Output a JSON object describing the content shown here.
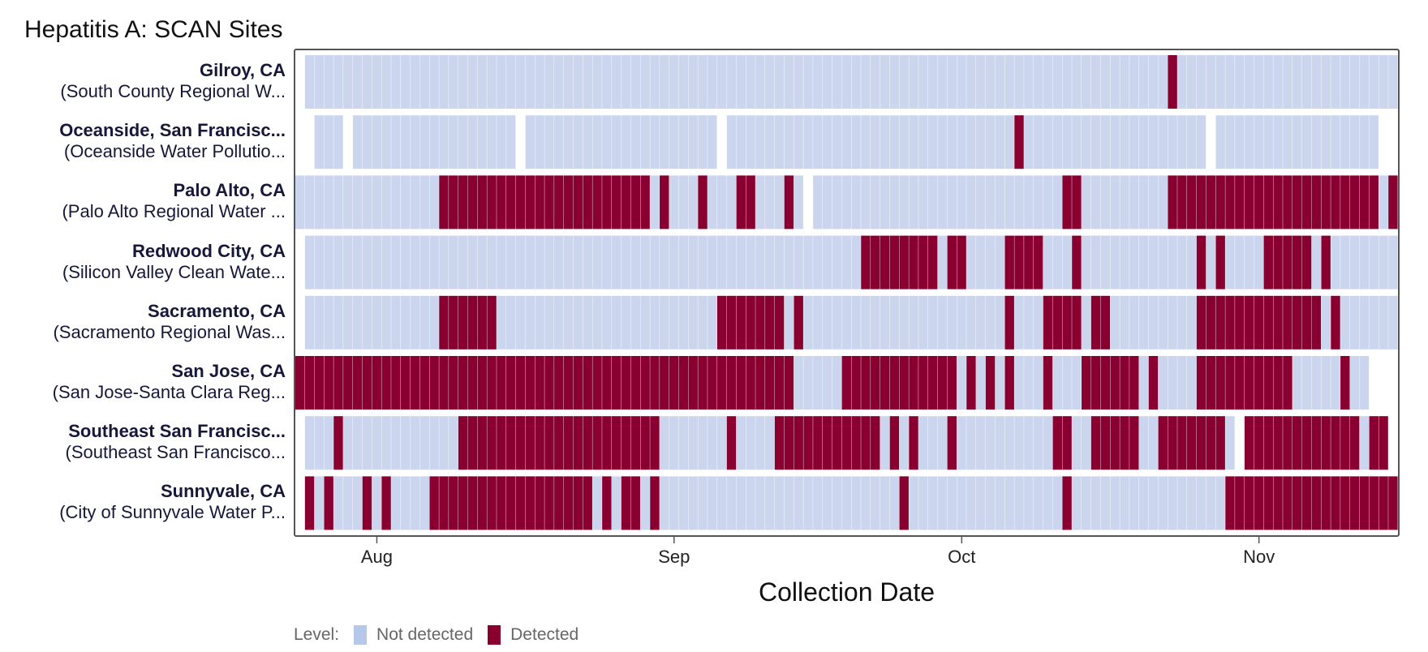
{
  "chart_data": {
    "type": "heatmap",
    "title": "Hepatitis A: SCAN Sites",
    "xlabel": "Collection Date",
    "ylabel": "",
    "x_ticks": [
      "Aug",
      "Sep",
      "Oct",
      "Nov"
    ],
    "x_tick_positions_day": [
      8,
      39,
      69,
      100
    ],
    "x_range_day": [
      0,
      114
    ],
    "legend": {
      "title": "Level:",
      "items": [
        {
          "label": "Not detected",
          "value": 0,
          "color": "#cbd6ee"
        },
        {
          "label": "Detected",
          "value": 1,
          "color": "#890030"
        }
      ]
    },
    "colors": {
      "not_detected": "#cbd6ee",
      "detected": "#890030",
      "legend_not_detected": "#b6c8ea"
    },
    "rows": [
      {
        "name": "Gilroy, CA",
        "plant": "(South County Regional W...",
        "start_day": 1,
        "pattern": "..........................................................................................#............................"
      },
      {
        "name": "Oceanside, San Francisc...",
        "plant": "(Oceanside Water Pollutio...",
        "start_day": 2,
        "pattern": "...x.................x....................x..............................#...................x................."
      },
      {
        "name": "Palo Alto, CA",
        "plant": "(Palo Alto Regional Water ...",
        "start_day": 0,
        "pattern": "...............######################.#...#...##...#.x..........................##.........######################.#"
      },
      {
        "name": "Redwood City, CA",
        "plant": "(Silicon Valley Clean Wate...",
        "start_day": 1,
        "pattern": "..........................................................########.##....####...#............#.#....#####.#..........."
      },
      {
        "name": "Sacramento, CA",
        "plant": "(Sacramento Regional Was...",
        "start_day": 1,
        "pattern": "..............######.......................#######.#.....................#...####.##.........#############.#.............."
      },
      {
        "name": "San Jose, CA",
        "plant": "(San Jose-Santa Clara Reg...",
        "start_day": 0,
        "pattern": "####################################################.....############.#.#.#...#...######.#....##########.....#.."
      },
      {
        "name": "Southeast San Francisc...",
        "plant": "(Southeast San Francisco...",
        "start_day": 1,
        "pattern": "...#............#####################.......#....###########.#.#...#..........##..#####..#######.x############.##"
      },
      {
        "name": "Sunnyvale, CA",
        "plant": "(City of Sunnyvale Water P...",
        "start_day": 1,
        "pattern": "#.#...#.#....#################.#.##.#.........................#................#................####################"
      }
    ]
  }
}
